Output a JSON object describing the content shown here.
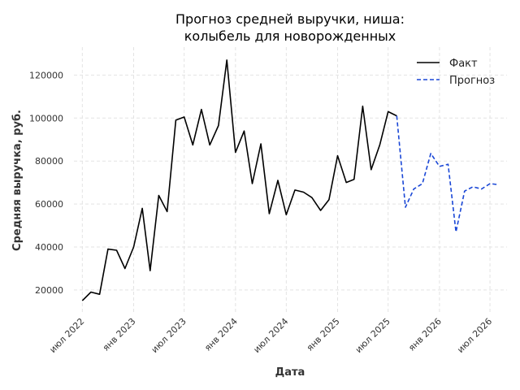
{
  "chart_data": {
    "type": "line",
    "title_lines": [
      "Прогноз средней выручки, ниша:",
      "колыбель для новорожденных"
    ],
    "xlabel": "Дата",
    "ylabel": "Средняя выручка, руб.",
    "ylim": [
      9000,
      133000
    ],
    "xlim": [
      "2022-06-01",
      "2026-08-31"
    ],
    "yticks": [
      20000,
      40000,
      60000,
      80000,
      100000,
      120000
    ],
    "xticks": [
      {
        "date": "2022-07-01",
        "label": "июл 2022"
      },
      {
        "date": "2023-01-01",
        "label": "янв 2023"
      },
      {
        "date": "2023-07-01",
        "label": "июл 2023"
      },
      {
        "date": "2024-01-01",
        "label": "янв 2024"
      },
      {
        "date": "2024-07-01",
        "label": "июл 2024"
      },
      {
        "date": "2025-01-01",
        "label": "янв 2025"
      },
      {
        "date": "2025-07-01",
        "label": "июл 2025"
      },
      {
        "date": "2026-01-01",
        "label": "янв 2026"
      },
      {
        "date": "2026-07-01",
        "label": "июл 2026"
      }
    ],
    "grid": true,
    "legend_position": "top-right",
    "series": [
      {
        "name": "Факт",
        "color": "#000000",
        "style": "solid",
        "points": [
          [
            "2022-07-01",
            15000
          ],
          [
            "2022-08-01",
            19000
          ],
          [
            "2022-09-01",
            18000
          ],
          [
            "2022-10-01",
            39000
          ],
          [
            "2022-11-01",
            38500
          ],
          [
            "2022-12-01",
            30000
          ],
          [
            "2023-01-01",
            40000
          ],
          [
            "2023-02-01",
            58000
          ],
          [
            "2023-03-01",
            29000
          ],
          [
            "2023-04-01",
            64000
          ],
          [
            "2023-05-01",
            56500
          ],
          [
            "2023-06-01",
            99000
          ],
          [
            "2023-07-01",
            100500
          ],
          [
            "2023-08-01",
            87500
          ],
          [
            "2023-09-01",
            104000
          ],
          [
            "2023-10-01",
            87500
          ],
          [
            "2023-11-01",
            96500
          ],
          [
            "2023-12-01",
            127000
          ],
          [
            "2024-01-01",
            84000
          ],
          [
            "2024-02-01",
            94000
          ],
          [
            "2024-03-01",
            69500
          ],
          [
            "2024-04-01",
            88000
          ],
          [
            "2024-05-01",
            55500
          ],
          [
            "2024-06-01",
            71000
          ],
          [
            "2024-07-01",
            55000
          ],
          [
            "2024-08-01",
            66500
          ],
          [
            "2024-09-01",
            65500
          ],
          [
            "2024-10-01",
            63000
          ],
          [
            "2024-11-01",
            57000
          ],
          [
            "2024-12-01",
            62000
          ],
          [
            "2025-01-01",
            82500
          ],
          [
            "2025-02-01",
            70000
          ],
          [
            "2025-03-01",
            71500
          ],
          [
            "2025-04-01",
            105500
          ],
          [
            "2025-05-01",
            76000
          ],
          [
            "2025-06-01",
            87500
          ],
          [
            "2025-07-01",
            103000
          ],
          [
            "2025-08-01",
            101000
          ]
        ]
      },
      {
        "name": "Прогноз",
        "color": "#1a47d6",
        "style": "dashed",
        "points": [
          [
            "2025-08-01",
            101000
          ],
          [
            "2025-09-01",
            58500
          ],
          [
            "2025-10-01",
            67000
          ],
          [
            "2025-11-01",
            69500
          ],
          [
            "2025-12-01",
            83500
          ],
          [
            "2026-01-01",
            77500
          ],
          [
            "2026-02-01",
            78500
          ],
          [
            "2026-03-01",
            47000
          ],
          [
            "2026-04-01",
            66000
          ],
          [
            "2026-05-01",
            68000
          ],
          [
            "2026-06-01",
            67000
          ],
          [
            "2026-07-01",
            69500
          ],
          [
            "2026-08-01",
            69000
          ]
        ]
      }
    ]
  }
}
